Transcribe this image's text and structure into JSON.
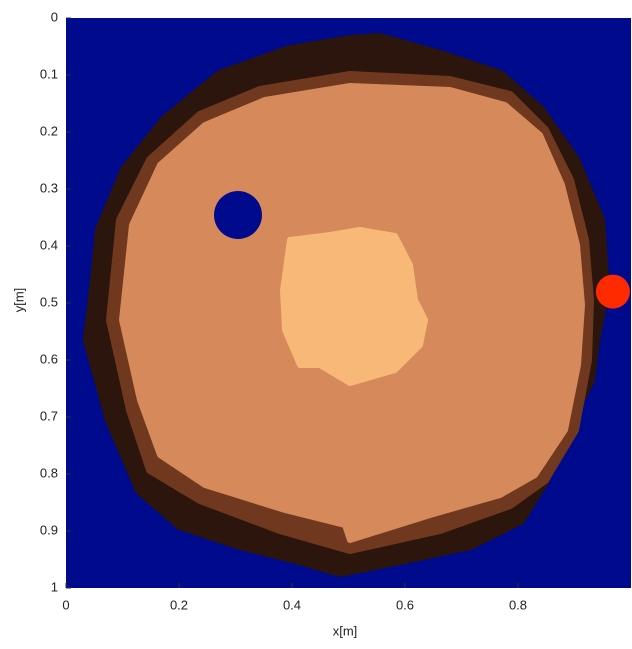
{
  "chart_data": {
    "type": "scatter",
    "xlabel": "x[m]",
    "ylabel": "y[m]",
    "xlim": [
      0,
      1
    ],
    "ylim": [
      0,
      1
    ],
    "y_inverted": true,
    "background": "#000a8c",
    "xticks": [
      0,
      0.2,
      0.4,
      0.6,
      0.8
    ],
    "yticks": [
      0,
      0.1,
      0.2,
      0.3,
      0.4,
      0.5,
      0.6,
      0.7,
      0.8,
      0.9,
      1
    ],
    "series": [
      {
        "color": "#ff2a00",
        "x": [
          0.968
        ],
        "values": [
          0.48
        ]
      }
    ]
  }
}
